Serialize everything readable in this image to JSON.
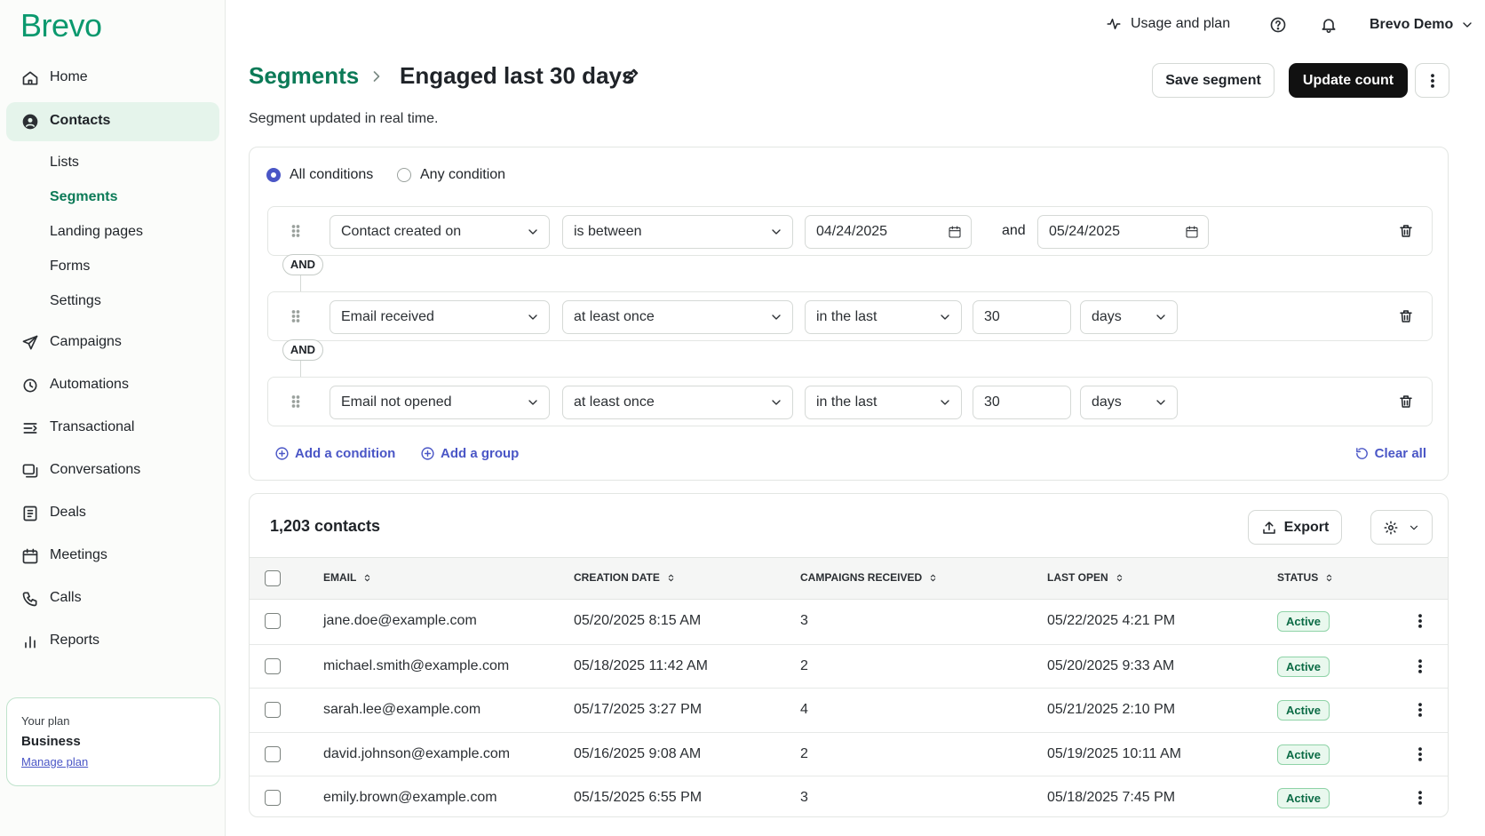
{
  "sidebar": {
    "logo": "Brevo",
    "nav": [
      {
        "label": "Home"
      },
      {
        "label": "Contacts",
        "children": [
          "Lists",
          "Segments",
          "Landing pages",
          "Forms",
          "Settings"
        ]
      },
      {
        "label": "Campaigns"
      },
      {
        "label": "Automations"
      },
      {
        "label": "Transactional"
      },
      {
        "label": "Conversations"
      },
      {
        "label": "Deals"
      },
      {
        "label": "Meetings"
      },
      {
        "label": "Calls"
      },
      {
        "label": "Reports"
      }
    ],
    "plan": {
      "caption": "Your plan",
      "name": "Business",
      "link": "Manage plan"
    }
  },
  "topbar": {
    "usage": "Usage and plan",
    "account": "Brevo Demo"
  },
  "header": {
    "breadcrumb": "Segments",
    "title": "Engaged last 30 days",
    "subtitle": "Segment updated in real time.",
    "buttons": [
      "Save segment",
      "Update count"
    ]
  },
  "conditions": {
    "modes": [
      "All conditions",
      "Any condition"
    ],
    "rows": [
      {
        "field": "Contact created on",
        "operator": "is between",
        "from": "04/24/2025",
        "joiner": "and",
        "to": "05/24/2025"
      },
      {
        "field": "Email received",
        "operator": "at least once",
        "window": "in the last",
        "amount": 30,
        "unit": "days"
      },
      {
        "field": "Email not opened",
        "operator": "at least once",
        "window": "in the last",
        "amount": 30,
        "unit": "days"
      }
    ],
    "connectors": [
      "AND",
      "AND"
    ],
    "actions": [
      "Add a condition",
      "Add a group",
      "Clear all"
    ]
  },
  "table": {
    "count": "1,203 contacts",
    "export": "Export",
    "columns": [
      "EMAIL",
      "CREATION DATE",
      "CAMPAIGNS RECEIVED",
      "LAST OPEN",
      "STATUS"
    ],
    "rows": [
      {
        "email": "jane.doe@example.com",
        "created": "05/20/2025 8:15 AM",
        "campaigns": 3,
        "last_open": "05/22/2025 4:21 PM",
        "status": "Active"
      },
      {
        "email": "michael.smith@example.com",
        "created": "05/18/2025 11:42 AM",
        "campaigns": 2,
        "last_open": "05/20/2025 9:33 AM",
        "status": "Active"
      },
      {
        "email": "sarah.lee@example.com",
        "created": "05/17/2025 3:27 PM",
        "campaigns": 4,
        "last_open": "05/21/2025 2:10 PM",
        "status": "Active"
      },
      {
        "email": "david.johnson@example.com",
        "created": "05/16/2025 9:08 AM",
        "campaigns": 2,
        "last_open": "05/19/2025 10:11 AM",
        "status": "Active"
      },
      {
        "email": "emily.brown@example.com",
        "created": "05/15/2025 6:55 PM",
        "campaigns": 3,
        "last_open": "05/18/2025 7:45 PM",
        "status": "Active"
      }
    ]
  }
}
